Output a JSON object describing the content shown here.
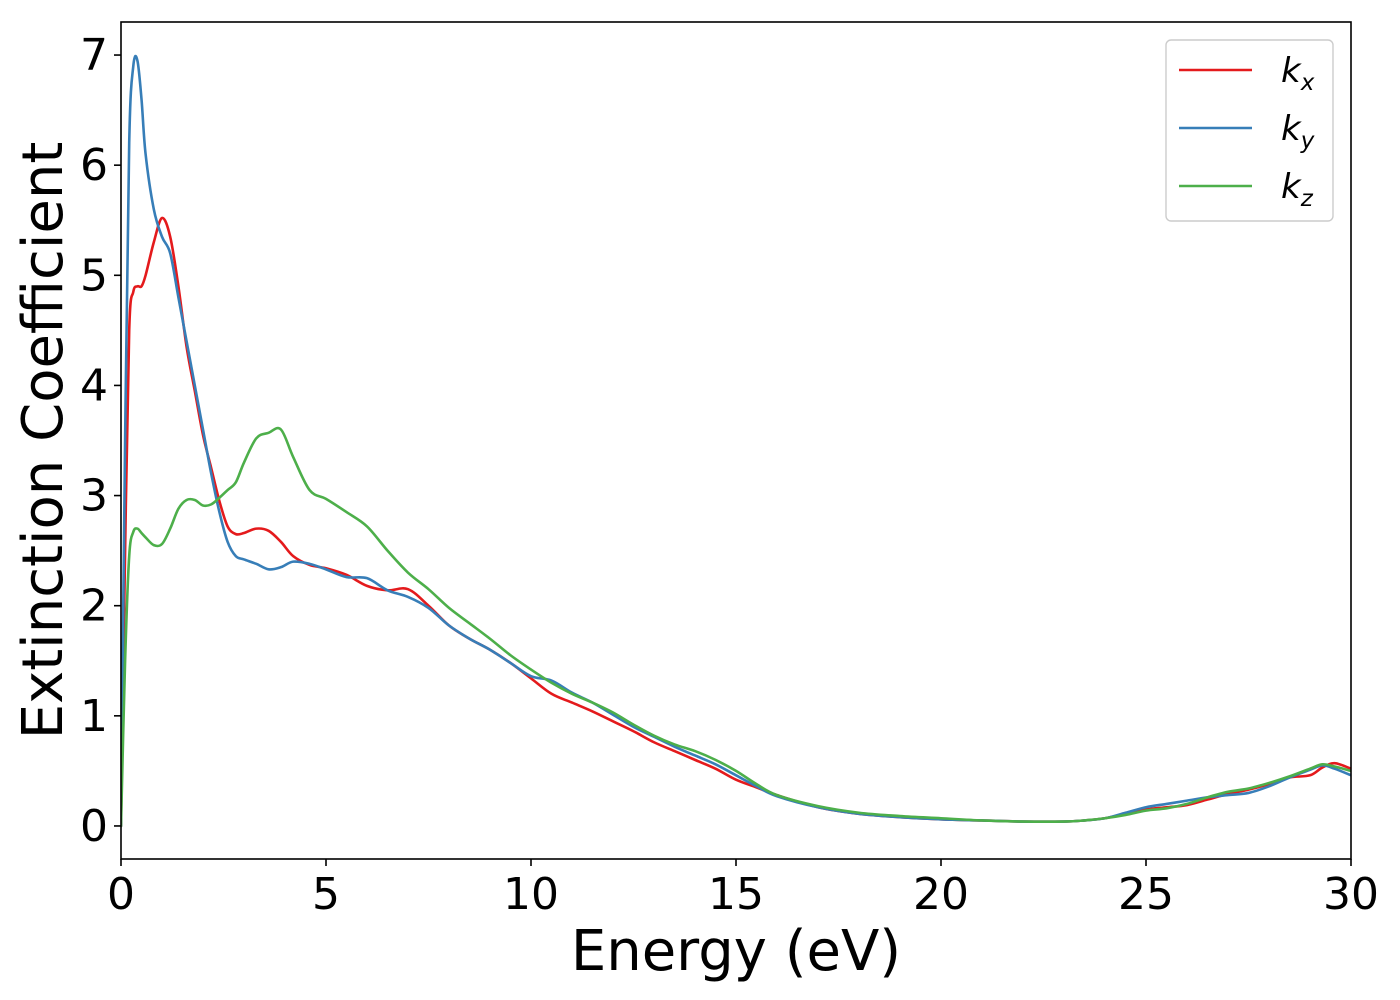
{
  "chart_data": {
    "type": "line",
    "title": "",
    "xlabel": "Energy (eV)",
    "ylabel": "Extinction Coefficient",
    "xlim": [
      0,
      30
    ],
    "ylim": [
      -0.3,
      7.3
    ],
    "xticks": [
      0,
      5,
      10,
      15,
      20,
      25,
      30
    ],
    "yticks": [
      0,
      1,
      2,
      3,
      4,
      5,
      6,
      7
    ],
    "grid": false,
    "legend_position": "top-right",
    "x": [
      0,
      0.1,
      0.2,
      0.3,
      0.4,
      0.5,
      0.6,
      0.8,
      1.0,
      1.2,
      1.4,
      1.6,
      1.8,
      2.0,
      2.2,
      2.4,
      2.6,
      2.8,
      3.0,
      3.3,
      3.6,
      3.9,
      4.2,
      4.6,
      5.0,
      5.5,
      6.0,
      6.5,
      7.0,
      7.5,
      8.0,
      8.5,
      9.0,
      9.5,
      10.0,
      10.5,
      11.0,
      11.5,
      12.0,
      12.5,
      13.0,
      13.5,
      14.0,
      14.5,
      15.0,
      15.5,
      16.0,
      17.0,
      18.0,
      19.0,
      20.0,
      21.0,
      22.0,
      23.0,
      23.5,
      24.0,
      24.5,
      25.0,
      25.5,
      26.0,
      26.5,
      27.0,
      27.5,
      28.0,
      28.5,
      29.0,
      29.3,
      29.6,
      30.0
    ],
    "series": [
      {
        "name": "k_x",
        "label_base": "k",
        "label_sub": "x",
        "color": "#e41a1c",
        "values": [
          0.0,
          2.5,
          4.5,
          4.85,
          4.9,
          4.9,
          5.0,
          5.3,
          5.52,
          5.35,
          4.9,
          4.35,
          3.95,
          3.55,
          3.25,
          2.95,
          2.72,
          2.65,
          2.66,
          2.7,
          2.68,
          2.58,
          2.45,
          2.37,
          2.34,
          2.28,
          2.18,
          2.14,
          2.15,
          2.0,
          1.82,
          1.7,
          1.6,
          1.48,
          1.34,
          1.2,
          1.12,
          1.04,
          0.95,
          0.86,
          0.76,
          0.68,
          0.6,
          0.52,
          0.42,
          0.35,
          0.28,
          0.17,
          0.11,
          0.08,
          0.06,
          0.05,
          0.04,
          0.04,
          0.05,
          0.07,
          0.11,
          0.15,
          0.17,
          0.19,
          0.24,
          0.29,
          0.33,
          0.38,
          0.44,
          0.46,
          0.53,
          0.57,
          0.52
        ]
      },
      {
        "name": "k_y",
        "label_base": "k",
        "label_sub": "y",
        "color": "#377eb8",
        "values": [
          0.0,
          3.5,
          6.2,
          6.9,
          6.95,
          6.6,
          6.1,
          5.6,
          5.35,
          5.2,
          4.8,
          4.4,
          4.0,
          3.6,
          3.2,
          2.85,
          2.58,
          2.45,
          2.42,
          2.38,
          2.33,
          2.35,
          2.4,
          2.38,
          2.33,
          2.26,
          2.25,
          2.14,
          2.08,
          1.98,
          1.82,
          1.7,
          1.6,
          1.48,
          1.36,
          1.32,
          1.21,
          1.12,
          1.01,
          0.9,
          0.81,
          0.72,
          0.64,
          0.56,
          0.46,
          0.36,
          0.27,
          0.17,
          0.11,
          0.08,
          0.06,
          0.05,
          0.04,
          0.04,
          0.05,
          0.07,
          0.12,
          0.17,
          0.2,
          0.23,
          0.26,
          0.28,
          0.3,
          0.36,
          0.44,
          0.51,
          0.55,
          0.52,
          0.46
        ]
      },
      {
        "name": "k_z",
        "label_base": "k",
        "label_sub": "z",
        "color": "#4daf4a",
        "values": [
          0.0,
          1.5,
          2.45,
          2.67,
          2.7,
          2.66,
          2.62,
          2.55,
          2.56,
          2.7,
          2.88,
          2.96,
          2.96,
          2.91,
          2.92,
          2.98,
          3.05,
          3.12,
          3.3,
          3.52,
          3.57,
          3.6,
          3.35,
          3.05,
          2.97,
          2.85,
          2.72,
          2.5,
          2.3,
          2.15,
          1.98,
          1.84,
          1.7,
          1.55,
          1.42,
          1.3,
          1.2,
          1.12,
          1.03,
          0.92,
          0.82,
          0.74,
          0.68,
          0.6,
          0.5,
          0.38,
          0.28,
          0.18,
          0.12,
          0.09,
          0.07,
          0.05,
          0.04,
          0.04,
          0.05,
          0.07,
          0.1,
          0.14,
          0.16,
          0.2,
          0.26,
          0.31,
          0.34,
          0.39,
          0.45,
          0.52,
          0.56,
          0.54,
          0.5
        ]
      }
    ]
  }
}
